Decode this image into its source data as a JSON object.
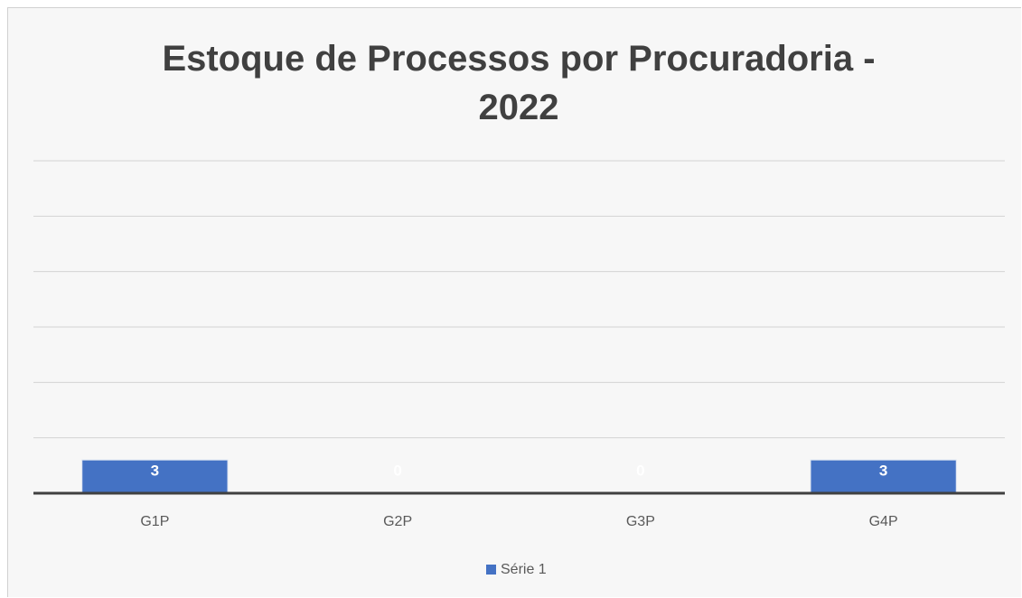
{
  "chart_data": {
    "type": "bar",
    "title": "Estoque de Processos por Procuradoria - 2022",
    "categories": [
      "G1P",
      "G2P",
      "G3P",
      "G4P"
    ],
    "series": [
      {
        "name": "Série 1",
        "color": "#4472c4",
        "values": [
          3,
          0,
          0,
          3
        ]
      }
    ],
    "ylim": [
      0,
      30
    ],
    "yticks": [
      0,
      5,
      10,
      15,
      20,
      25,
      30
    ],
    "grid": true,
    "legend": "bottom"
  }
}
